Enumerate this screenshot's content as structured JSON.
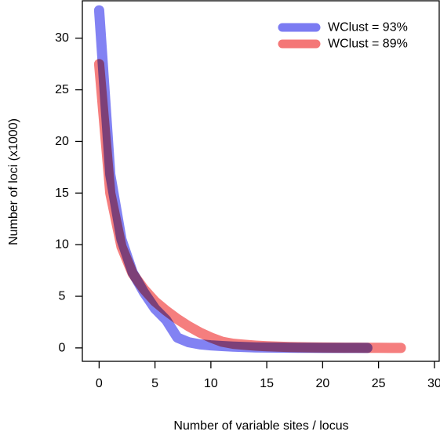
{
  "chart_data": {
    "type": "line",
    "xlabel": "Number of variable sites / locus",
    "ylabel": "Number of loci (x1000)",
    "xlim": [
      -1.5,
      30.5
    ],
    "ylim": [
      -1.3,
      33.7
    ],
    "x_ticks": [
      0,
      5,
      10,
      15,
      20,
      25,
      30
    ],
    "y_ticks": [
      0,
      5,
      10,
      15,
      20,
      25,
      30
    ],
    "grid": false,
    "legend": "top-right",
    "series": [
      {
        "name": "WClust = 93%",
        "color": "#7b7bf2",
        "x": [
          0,
          1,
          2,
          3,
          4,
          5,
          6,
          7,
          8,
          9,
          10,
          11,
          12,
          13,
          14,
          15,
          16,
          17,
          18,
          19,
          20,
          21,
          22,
          23,
          24
        ],
        "y": [
          32.7,
          16.8,
          10.5,
          7.3,
          5.4,
          3.8,
          2.7,
          1.0,
          0.55,
          0.35,
          0.25,
          0.18,
          0.12,
          0.08,
          0.05,
          0.04,
          0.03,
          0.02,
          0.01,
          0.01,
          0.0,
          0.0,
          0.0,
          0.0,
          0.0
        ]
      },
      {
        "name": "WClust = 89%",
        "color": "#f47777",
        "x": [
          0,
          1,
          2,
          3,
          4,
          5,
          6,
          7,
          8,
          9,
          10,
          11,
          12,
          13,
          14,
          15,
          16,
          17,
          18,
          19,
          20,
          21,
          22,
          23,
          24,
          25,
          26,
          27
        ],
        "y": [
          27.5,
          15.0,
          9.8,
          7.2,
          5.7,
          4.5,
          3.6,
          2.8,
          2.1,
          1.5,
          1.0,
          0.6,
          0.4,
          0.3,
          0.22,
          0.16,
          0.12,
          0.09,
          0.07,
          0.05,
          0.04,
          0.03,
          0.02,
          0.02,
          0.01,
          0.01,
          0.0,
          0.0
        ]
      }
    ]
  }
}
